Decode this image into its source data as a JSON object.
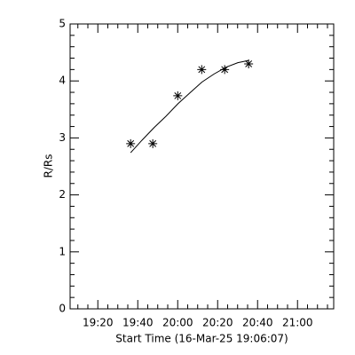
{
  "chart_data": {
    "type": "scatter",
    "xlabel": "Start Time (16-Mar-25 19:06:07)",
    "ylabel": "R/Rs",
    "xlim": [
      0,
      132
    ],
    "ylim": [
      0,
      5
    ],
    "xticks": [
      {
        "value": 13.883,
        "label": "19:20"
      },
      {
        "value": 33.883,
        "label": "19:40"
      },
      {
        "value": 53.883,
        "label": "20:00"
      },
      {
        "value": 73.883,
        "label": "20:20"
      },
      {
        "value": 93.883,
        "label": "20:40"
      },
      {
        "value": 113.883,
        "label": "21:00"
      }
    ],
    "yticks": [
      0,
      1,
      2,
      3,
      4,
      5
    ],
    "x_minor": 4,
    "y_minor": 5,
    "color": "#000000",
    "series": [
      {
        "marker": "star",
        "x": [
          30.3,
          41.4,
          53.9,
          65.9,
          77.4,
          89.4
        ],
        "values": [
          2.9,
          2.9,
          3.74,
          4.2,
          4.2,
          4.3
        ]
      },
      {
        "marker": "line",
        "x": [
          30.3,
          36,
          42,
          48,
          54,
          60,
          66,
          72,
          78,
          84,
          89.4
        ],
        "values": [
          2.74,
          2.96,
          3.18,
          3.38,
          3.6,
          3.79,
          3.98,
          4.12,
          4.24,
          4.32,
          4.36
        ]
      }
    ]
  }
}
